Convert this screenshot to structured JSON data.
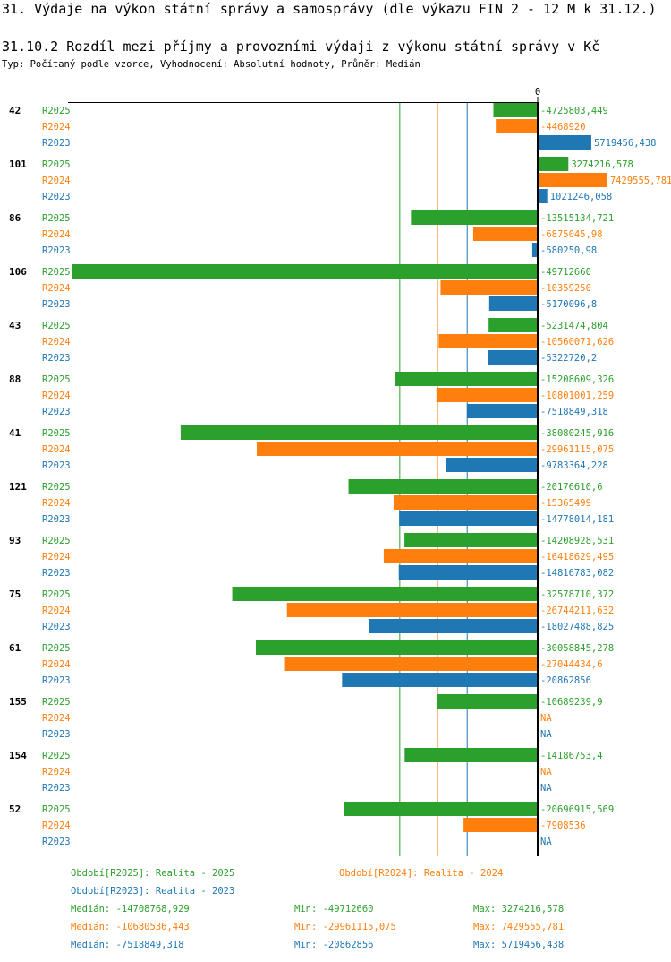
{
  "title": "31. Výdaje na výkon státní správy a samosprávy (dle výkazu FIN 2 - 12 M k 31.12.)",
  "subtitle": "31.10.2 Rozdíl mezi příjmy a provozními výdaji z výkonu státní správy v Kč",
  "meta": "Typ: Počítaný podle vzorce, Vyhodnocení: Absolutní hodnoty, Průměr: Medián",
  "colors": {
    "R2025": "#2ca02c",
    "R2024": "#ff7f0e",
    "R2023": "#1f77b4"
  },
  "chart_data": {
    "type": "bar",
    "orientation": "horizontal",
    "zero_label": "0",
    "series_names": [
      "R2025",
      "R2024",
      "R2023"
    ],
    "groups": [
      {
        "id": "42",
        "values": [
          -4725803.449,
          -4468920,
          5719456.438
        ],
        "labels": [
          "-4725803,449",
          "-4468920",
          "5719456,438"
        ]
      },
      {
        "id": "101",
        "values": [
          3274216.578,
          7429555.781,
          1021246.058
        ],
        "labels": [
          "3274216,578",
          "7429555,781",
          "1021246,058"
        ]
      },
      {
        "id": "86",
        "values": [
          -13515134.721,
          -6875045.98,
          -580250.98
        ],
        "labels": [
          "-13515134,721",
          "-6875045,98",
          "-580250,98"
        ]
      },
      {
        "id": "106",
        "values": [
          -49712660,
          -10359250,
          -5170096.8
        ],
        "labels": [
          "-49712660",
          "-10359250",
          "-5170096,8"
        ]
      },
      {
        "id": "43",
        "values": [
          -5231474.804,
          -10560071.626,
          -5322720.2
        ],
        "labels": [
          "-5231474,804",
          "-10560071,626",
          "-5322720,2"
        ]
      },
      {
        "id": "88",
        "values": [
          -15208609.326,
          -10801001.259,
          -7518849.318
        ],
        "labels": [
          "-15208609,326",
          "-10801001,259",
          "-7518849,318"
        ]
      },
      {
        "id": "41",
        "values": [
          -38080245.916,
          -29961115.075,
          -9783364.228
        ],
        "labels": [
          "-38080245,916",
          "-29961115,075",
          "-9783364,228"
        ]
      },
      {
        "id": "121",
        "values": [
          -20176610.6,
          -15365499,
          -14778014.181
        ],
        "labels": [
          "-20176610,6",
          "-15365499",
          "-14778014,181"
        ]
      },
      {
        "id": "93",
        "values": [
          -14208928.531,
          -16418629.495,
          -14816783.082
        ],
        "labels": [
          "-14208928,531",
          "-16418629,495",
          "-14816783,082"
        ]
      },
      {
        "id": "75",
        "values": [
          -32578710.372,
          -26744211.632,
          -18027488.825
        ],
        "labels": [
          "-32578710,372",
          "-26744211,632",
          "-18027488,825"
        ]
      },
      {
        "id": "61",
        "values": [
          -30058845.278,
          -27044434.6,
          -20862856
        ],
        "labels": [
          "-30058845,278",
          "-27044434,6",
          "-20862856"
        ]
      },
      {
        "id": "155",
        "values": [
          -10689239.9,
          null,
          null
        ],
        "labels": [
          "-10689239,9",
          "NA",
          "NA"
        ]
      },
      {
        "id": "154",
        "values": [
          -14186753.4,
          null,
          null
        ],
        "labels": [
          "-14186753,4",
          "NA",
          "NA"
        ]
      },
      {
        "id": "52",
        "values": [
          -20696915.569,
          -7908536,
          null
        ],
        "labels": [
          "-20696915,569",
          "-7908536",
          "NA"
        ]
      }
    ],
    "medians": [
      -14708768.929,
      -10680536.443,
      -7518849.318
    ],
    "axis_min": -49712660,
    "axis_max": 7429555.781
  },
  "footer": {
    "period_r2025": "Období[R2025]: Realita - 2025",
    "period_r2024": "Období[R2024]: Realita - 2024",
    "period_r2023": "Období[R2023]: Realita - 2023",
    "stats": [
      {
        "median": "Medián: -14708768,929",
        "min": "Min: -49712660",
        "max": "Max: 3274216,578"
      },
      {
        "median": "Medián: -10680536,443",
        "min": "Min: -29961115,075",
        "max": "Max: 7429555,781"
      },
      {
        "median": "Medián: -7518849,318",
        "min": "Min: -20862856",
        "max": "Max: 5719456,438"
      }
    ]
  }
}
